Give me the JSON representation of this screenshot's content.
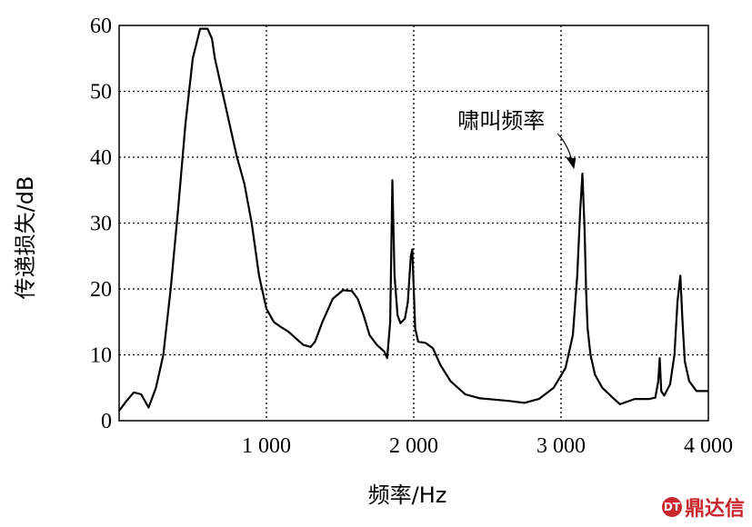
{
  "chart_data": {
    "type": "line",
    "xlabel": "频率/Hz",
    "ylabel": "传递损失/dB",
    "xlim": [
      0,
      4000
    ],
    "ylim": [
      0,
      60
    ],
    "x_ticks": [
      1000,
      2000,
      3000,
      4000
    ],
    "x_tick_labels": [
      "1 000",
      "2 000",
      "3 000",
      "4 000"
    ],
    "y_ticks": [
      0,
      10,
      20,
      30,
      40,
      50,
      60
    ],
    "y_tick_labels": [
      "0",
      "10",
      "20",
      "30",
      "40",
      "50",
      "60"
    ],
    "grid": true,
    "annotation": {
      "text": "啸叫频率",
      "x": 3150,
      "y": 37.5
    },
    "series": [
      {
        "x": [
          0,
          50,
          100,
          150,
          200,
          250,
          300,
          350,
          400,
          450,
          500,
          550,
          600,
          630,
          650,
          700,
          750,
          800,
          850,
          900,
          950,
          1000,
          1050,
          1100,
          1150,
          1200,
          1250,
          1300,
          1330,
          1380,
          1450,
          1520,
          1580,
          1620,
          1660,
          1700,
          1750,
          1800,
          1820,
          1840,
          1855,
          1870,
          1890,
          1910,
          1940,
          1960,
          1980,
          1990,
          2000,
          2010,
          2030,
          2080,
          2130,
          2180,
          2250,
          2350,
          2450,
          2550,
          2650,
          2750,
          2850,
          2950,
          3030,
          3080,
          3110,
          3130,
          3145,
          3160,
          3170,
          3180,
          3200,
          3230,
          3280,
          3350,
          3400,
          3500,
          3600,
          3640,
          3660,
          3670,
          3680,
          3700,
          3740,
          3770,
          3790,
          3810,
          3825,
          3840,
          3870,
          3920,
          4000
        ],
        "y": [
          1.5,
          3,
          4.3,
          4,
          2,
          5,
          10,
          20,
          32,
          45,
          55,
          59.5,
          59.5,
          58,
          55,
          50,
          45,
          40,
          36,
          30,
          22,
          17,
          15,
          14.2,
          13.5,
          12.5,
          11.5,
          11.2,
          12,
          15,
          18.5,
          19.8,
          19.7,
          18.5,
          16,
          13,
          11.5,
          10.5,
          9.5,
          15,
          36.5,
          22,
          16,
          14.8,
          15.5,
          18,
          25,
          26,
          20,
          14,
          12,
          11.8,
          11,
          8.5,
          6,
          4,
          3.4,
          3.2,
          3.0,
          2.7,
          3.3,
          5,
          8,
          13,
          22,
          32,
          37.5,
          29,
          20,
          14,
          10,
          7,
          5,
          3.5,
          2.5,
          3.3,
          3.3,
          3.5,
          6,
          9.5,
          4.5,
          3.8,
          5.5,
          10,
          18,
          22,
          15,
          9,
          6,
          4.5,
          4.5
        ]
      }
    ]
  },
  "watermark": {
    "text": "鼎达信",
    "badge": "DT"
  }
}
